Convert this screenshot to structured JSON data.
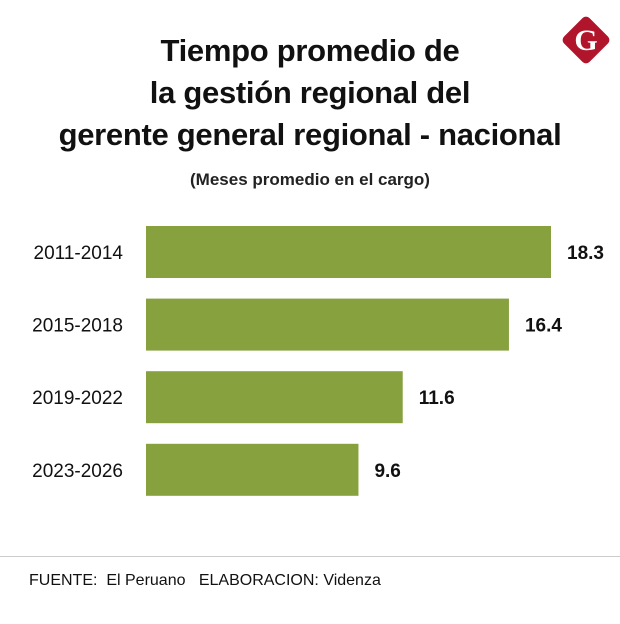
{
  "logo": {
    "letter": "G",
    "color": "#b0152b"
  },
  "footer": {
    "source": "FUENTE:  El Peruano",
    "credit": "ELABORACION: Videnza"
  },
  "chart_data": {
    "type": "bar",
    "orientation": "horizontal",
    "title_lines": [
      "Tiempo promedio de",
      "la gestión regional del",
      "gerente general regional - nacional"
    ],
    "subtitle": "(Meses promedio en el cargo)",
    "categories": [
      "2011-2014",
      "2015-2018",
      "2019-2022",
      "2023-2026"
    ],
    "values": [
      18.3,
      16.4,
      11.6,
      9.6
    ],
    "value_labels": [
      "18.3",
      "16.4",
      "11.6",
      "9.6"
    ],
    "bar_color": "#87a13f",
    "xlim": [
      0,
      18.3
    ],
    "grid": false,
    "legend": "none"
  }
}
